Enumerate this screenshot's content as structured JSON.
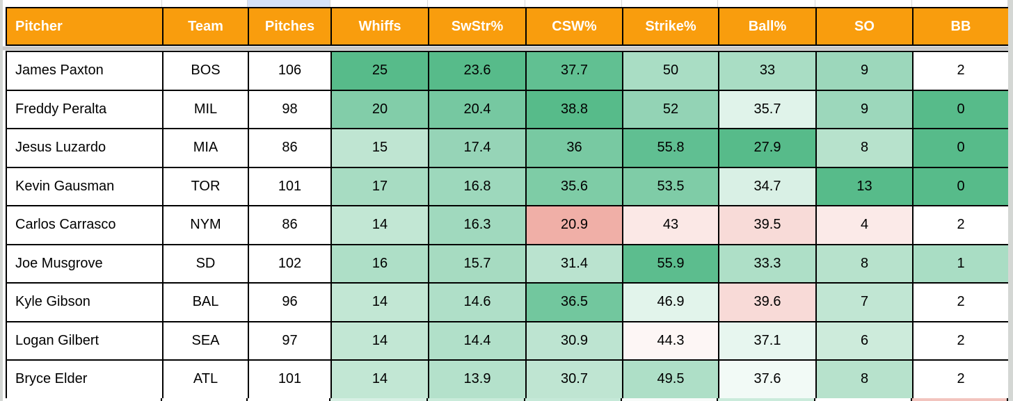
{
  "sheet": {
    "columns": [
      "Pitcher",
      "Team",
      "Pitches",
      "Whiffs",
      "SwStr%",
      "CSW%",
      "Strike%",
      "Ball%",
      "SO",
      "BB"
    ],
    "rows": [
      {
        "cells": [
          "James Paxton",
          "BOS",
          "106",
          "25",
          "23.6",
          "37.7",
          "50",
          "33",
          "9",
          "2"
        ],
        "bg": [
          "#FFFFFF",
          "#FFFFFF",
          "#FFFFFF",
          "#57BB8A",
          "#57BB8A",
          "#61C092",
          "#A9DDC4",
          "#A9DDC4",
          "#9CD7BB",
          "#FFFFFF"
        ]
      },
      {
        "cells": [
          "Freddy Peralta",
          "MIL",
          "98",
          "20",
          "20.4",
          "38.8",
          "52",
          "35.7",
          "9",
          "0"
        ],
        "bg": [
          "#FFFFFF",
          "#FFFFFF",
          "#FFFFFF",
          "#82CDA9",
          "#76C8A1",
          "#57BB8A",
          "#93D3B5",
          "#E0F3EA",
          "#9CD7BB",
          "#57BB8A"
        ]
      },
      {
        "cells": [
          "Jesus Luzardo",
          "MIA",
          "86",
          "15",
          "17.4",
          "36",
          "55.8",
          "27.9",
          "8",
          "0"
        ],
        "bg": [
          "#FFFFFF",
          "#FFFFFF",
          "#FFFFFF",
          "#BFE5D2",
          "#96D4B7",
          "#78C9A2",
          "#60BF92",
          "#57BB8A",
          "#B7E2CC",
          "#57BB8A"
        ]
      },
      {
        "cells": [
          "Kevin Gausman",
          "TOR",
          "101",
          "17",
          "16.8",
          "35.6",
          "53.5",
          "34.7",
          "13",
          "0"
        ],
        "bg": [
          "#FFFFFF",
          "#FFFFFF",
          "#FFFFFF",
          "#A7DCC2",
          "#9DD8BC",
          "#7ECCA6",
          "#7FCCA7",
          "#D9F0E5",
          "#57BB8A",
          "#57BB8A"
        ]
      },
      {
        "cells": [
          "Carlos Carrasco",
          "NYM",
          "86",
          "14",
          "16.3",
          "20.9",
          "43",
          "39.5",
          "4",
          "2"
        ],
        "bg": [
          "#FFFFFF",
          "#FFFFFF",
          "#FFFFFF",
          "#C2E7D4",
          "#A0D9BE",
          "#F0AFA7",
          "#FBE8E6",
          "#F8DBD8",
          "#FBEAE8",
          "#FFFFFF"
        ]
      },
      {
        "cells": [
          "Joe Musgrove",
          "SD",
          "102",
          "16",
          "15.7",
          "31.4",
          "55.9",
          "33.3",
          "8",
          "1"
        ],
        "bg": [
          "#FFFFFF",
          "#FFFFFF",
          "#FFFFFF",
          "#AEDFC7",
          "#A6DBC1",
          "#BAE3CF",
          "#5CBD8E",
          "#AEDFC7",
          "#B7E2CC",
          "#A9DDC4"
        ]
      },
      {
        "cells": [
          "Kyle Gibson",
          "BAL",
          "96",
          "14",
          "14.6",
          "36.5",
          "46.9",
          "39.6",
          "7",
          "2"
        ],
        "bg": [
          "#FFFFFF",
          "#FFFFFF",
          "#FFFFFF",
          "#C2E7D4",
          "#AFDFC8",
          "#72C79E",
          "#E2F4EB",
          "#F8DAD7",
          "#C1E6D3",
          "#FFFFFF"
        ]
      },
      {
        "cells": [
          "Logan Gilbert",
          "SEA",
          "97",
          "14",
          "14.4",
          "30.9",
          "44.3",
          "37.1",
          "6",
          "2"
        ],
        "bg": [
          "#FFFFFF",
          "#FFFFFF",
          "#FFFFFF",
          "#C2E7D4",
          "#B1E0C9",
          "#BDE4D1",
          "#FDF6F5",
          "#E7F6EF",
          "#CDEBDB",
          "#FFFFFF"
        ]
      },
      {
        "cells": [
          "Bryce Elder",
          "ATL",
          "101",
          "14",
          "13.9",
          "30.7",
          "49.5",
          "37.6",
          "8",
          "2"
        ],
        "bg": [
          "#FFFFFF",
          "#FFFFFF",
          "#FFFFFF",
          "#C2E7D4",
          "#B4E1CB",
          "#BFE5D2",
          "#AEDFC7",
          "#F2FAF6",
          "#B7E2CC",
          "#FFFFFF"
        ]
      }
    ],
    "partial_next_row_bg": [
      "#FFFFFF",
      "#FFFFFF",
      "#FFFFFF",
      "#D7F0E4",
      "#C9EBDA",
      "#C5E9D8",
      "#F7FBF9",
      "#CAEBDB",
      "#FFFFFF",
      "#F2C4BE"
    ]
  },
  "ui": {
    "header_bg": "#F99D0D",
    "header_text": "#FFFFFF",
    "cell_border": "#000000",
    "frozen_divider": "#C8C8C8",
    "column_highlight": "#D5E2F8",
    "side_strip": "#D4D7D4",
    "gridline": "#D8D8D8",
    "scale_green_max": "#57BB8A",
    "scale_red_max": "#E67C73"
  }
}
